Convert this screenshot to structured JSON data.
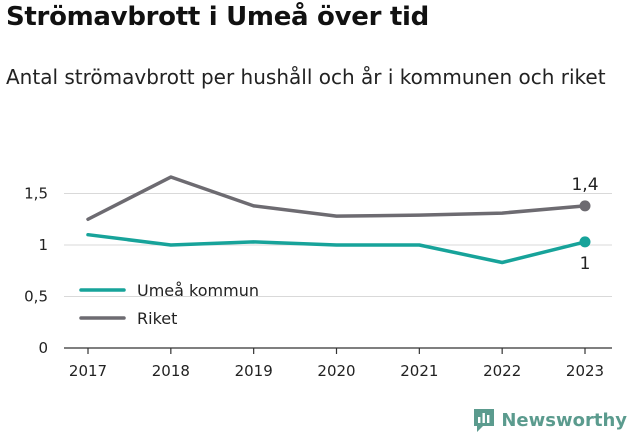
{
  "header": {
    "title": "Strömavbrott i Umeå över tid",
    "subtitle": "Antal strömavbrott per hushåll och år i kommunen och riket"
  },
  "brand": {
    "name": "Newsworthy",
    "icon": "newsworthy-logo-icon",
    "color": "#5b9b8e"
  },
  "chart_data": {
    "type": "line",
    "title": "Strömavbrott i Umeå över tid",
    "subtitle": "Antal strömavbrott per hushåll och år i kommunen och riket",
    "xlabel": "",
    "ylabel": "",
    "x": [
      "2017",
      "2018",
      "2019",
      "2020",
      "2021",
      "2022",
      "2023"
    ],
    "ylim": [
      0,
      1.75
    ],
    "yticks": [
      0,
      0.5,
      1,
      1.5
    ],
    "ytick_labels": [
      "0",
      "0,5",
      "1",
      "1,5"
    ],
    "grid": true,
    "legend_position": "bottom-left",
    "series": [
      {
        "name": "Umeå kommun",
        "color": "#17a39a",
        "values": [
          1.1,
          1.0,
          1.03,
          1.0,
          1.0,
          0.83,
          1.03
        ],
        "end_label": "1"
      },
      {
        "name": "Riket",
        "color": "#6d6b71",
        "values": [
          1.25,
          1.66,
          1.38,
          1.28,
          1.29,
          1.31,
          1.38
        ],
        "end_label": "1,4"
      }
    ]
  }
}
